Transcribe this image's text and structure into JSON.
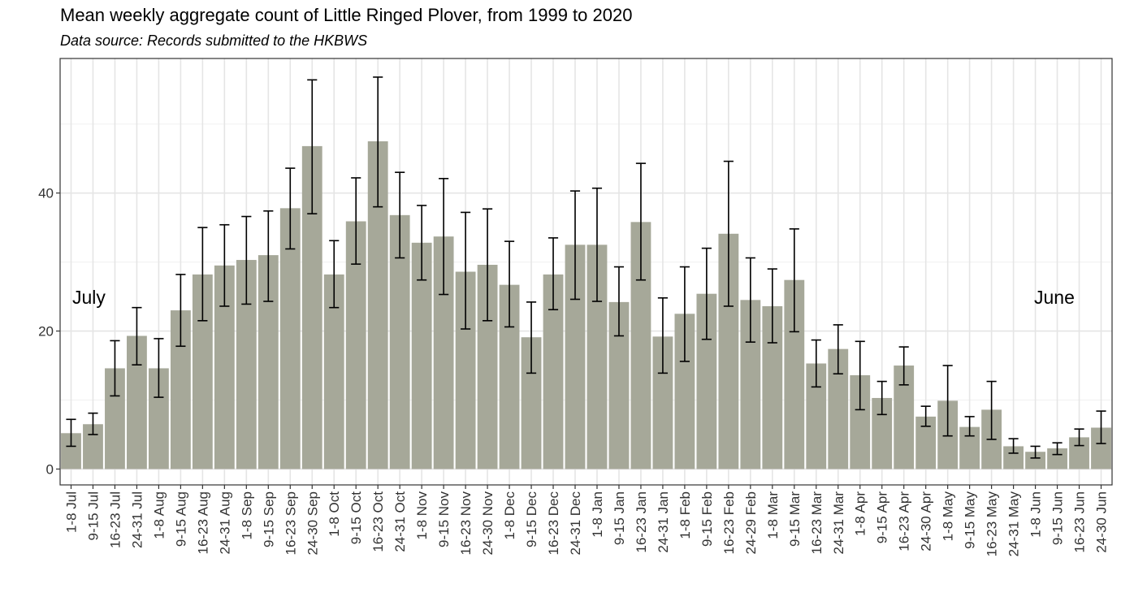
{
  "chart_data": {
    "type": "bar",
    "title": "Mean weekly aggregate count of Little Ringed Plover, from 1999 to 2020",
    "subtitle": "Data source: Records submitted to the HKBWS",
    "xlabel": "",
    "ylabel": "",
    "ylim": [
      -2.3,
      59.5
    ],
    "yticks": [
      0,
      20,
      40
    ],
    "grid": true,
    "bar_color": "#a6a899",
    "categories": [
      "1-8 Jul",
      "9-15 Jul",
      "16-23 Jul",
      "24-31 Jul",
      "1-8 Aug",
      "9-15 Aug",
      "16-23 Aug",
      "24-31 Aug",
      "1-8 Sep",
      "9-15 Sep",
      "16-23 Sep",
      "24-30 Sep",
      "1-8 Oct",
      "9-15 Oct",
      "16-23 Oct",
      "24-31 Oct",
      "1-8 Nov",
      "9-15 Nov",
      "16-23 Nov",
      "24-30 Nov",
      "1-8 Dec",
      "9-15 Dec",
      "16-23 Dec",
      "24-31 Dec",
      "1-8 Jan",
      "9-15 Jan",
      "16-23 Jan",
      "24-31 Jan",
      "1-8 Feb",
      "9-15 Feb",
      "16-23 Feb",
      "24-29 Feb",
      "1-8 Mar",
      "9-15 Mar",
      "16-23 Mar",
      "24-31 Mar",
      "1-8 Apr",
      "9-15 Apr",
      "16-23 Apr",
      "24-30 Apr",
      "1-8 May",
      "9-15 May",
      "16-23 May",
      "24-31 May",
      "1-8 Jun",
      "9-15 Jun",
      "16-23 Jun",
      "24-30 Jun"
    ],
    "values": [
      5.2,
      6.5,
      14.6,
      19.3,
      14.6,
      23.0,
      28.2,
      29.5,
      30.3,
      31.0,
      37.8,
      46.8,
      28.2,
      35.9,
      47.5,
      36.8,
      32.8,
      33.7,
      28.6,
      29.6,
      26.7,
      19.1,
      28.2,
      32.5,
      32.5,
      24.2,
      35.8,
      19.2,
      22.5,
      25.4,
      34.1,
      24.5,
      23.6,
      27.4,
      15.3,
      17.4,
      13.6,
      10.3,
      15.0,
      7.6,
      9.9,
      6.1,
      8.6,
      3.3,
      2.5,
      3.0,
      4.6,
      6.0
    ],
    "error_low": [
      3.3,
      5.0,
      10.6,
      15.1,
      10.4,
      17.8,
      21.5,
      23.6,
      23.9,
      24.3,
      31.9,
      37.0,
      23.4,
      29.7,
      38.0,
      30.6,
      27.4,
      25.3,
      20.3,
      21.5,
      20.6,
      13.9,
      23.1,
      24.6,
      24.3,
      19.3,
      27.4,
      13.9,
      15.6,
      18.8,
      23.6,
      18.4,
      18.3,
      19.9,
      11.9,
      13.8,
      8.6,
      7.9,
      12.2,
      6.2,
      4.8,
      4.8,
      4.3,
      2.3,
      1.6,
      2.1,
      3.4,
      3.7
    ],
    "error_high": [
      7.2,
      8.1,
      18.6,
      23.4,
      18.9,
      28.2,
      35.0,
      35.4,
      36.6,
      37.4,
      43.6,
      56.4,
      33.1,
      42.2,
      56.8,
      43.0,
      38.2,
      42.1,
      37.2,
      37.7,
      33.0,
      24.2,
      33.5,
      40.3,
      40.7,
      29.3,
      44.3,
      24.8,
      29.3,
      32.0,
      44.6,
      30.6,
      29.0,
      34.8,
      18.7,
      20.9,
      18.5,
      12.7,
      17.7,
      9.1,
      15.0,
      7.6,
      12.7,
      4.4,
      3.3,
      3.8,
      5.8,
      8.4
    ],
    "annotations": {
      "left": "July",
      "right": "June"
    }
  }
}
